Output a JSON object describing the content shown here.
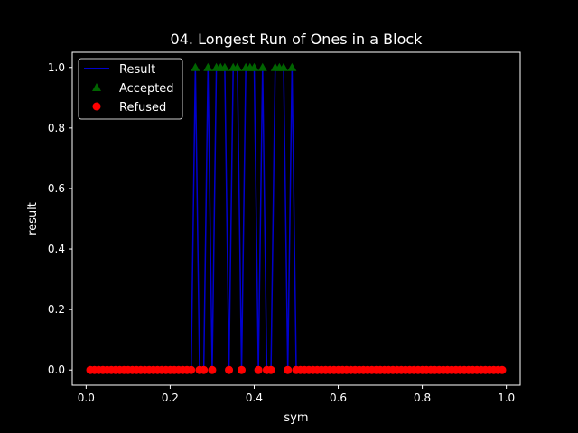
{
  "chart_data": {
    "type": "line",
    "title": "04. Longest Run of Ones in a Block",
    "xlabel": "sym",
    "ylabel": "result",
    "xlim": [
      -0.033,
      1.033
    ],
    "ylim": [
      -0.05,
      1.05
    ],
    "xticks": [
      0.0,
      0.2,
      0.4,
      0.6,
      0.8,
      1.0
    ],
    "xtick_labels": [
      "0.0",
      "0.2",
      "0.4",
      "0.6",
      "0.8",
      "1.0"
    ],
    "yticks": [
      0.0,
      0.2,
      0.4,
      0.6,
      0.8,
      1.0
    ],
    "ytick_labels": [
      "0.0",
      "0.2",
      "0.4",
      "0.6",
      "0.8",
      "1.0"
    ],
    "grid": false,
    "legend": "upper-left",
    "colors": {
      "background": "#000000",
      "line": "#0000cc",
      "accepted": "#006400",
      "refused": "#ff0000",
      "axis": "#ffffff"
    },
    "x": [
      0.01,
      0.02,
      0.03,
      0.04,
      0.05,
      0.06,
      0.07,
      0.08,
      0.09,
      0.1,
      0.11,
      0.12,
      0.13,
      0.14,
      0.15,
      0.16,
      0.17,
      0.18,
      0.19,
      0.2,
      0.21,
      0.22,
      0.23,
      0.24,
      0.25,
      0.26,
      0.27,
      0.28,
      0.29,
      0.3,
      0.31,
      0.32,
      0.33,
      0.34,
      0.35,
      0.36,
      0.37,
      0.38,
      0.39,
      0.4,
      0.41,
      0.42,
      0.43,
      0.44,
      0.45,
      0.46,
      0.47,
      0.48,
      0.49,
      0.5,
      0.51,
      0.52,
      0.53,
      0.54,
      0.55,
      0.56,
      0.57,
      0.58,
      0.59,
      0.6,
      0.61,
      0.62,
      0.63,
      0.64,
      0.65,
      0.66,
      0.67,
      0.68,
      0.69,
      0.7,
      0.71,
      0.72,
      0.73,
      0.74,
      0.75,
      0.76,
      0.77,
      0.78,
      0.79,
      0.8,
      0.81,
      0.82,
      0.83,
      0.84,
      0.85,
      0.86,
      0.87,
      0.88,
      0.89,
      0.9,
      0.91,
      0.92,
      0.93,
      0.94,
      0.95,
      0.96,
      0.97,
      0.98,
      0.99
    ],
    "series": [
      {
        "name": "Result",
        "role": "line",
        "values": [
          0,
          0,
          0,
          0,
          0,
          0,
          0,
          0,
          0,
          0,
          0,
          0,
          0,
          0,
          0,
          0,
          0,
          0,
          0,
          0,
          0,
          0,
          0,
          0,
          0,
          1,
          0,
          0,
          1,
          0,
          1,
          1,
          1,
          0,
          1,
          1,
          0,
          1,
          1,
          1,
          0,
          1,
          0,
          0,
          1,
          1,
          1,
          0,
          1,
          0,
          0,
          0,
          0,
          0,
          0,
          0,
          0,
          0,
          0,
          0,
          0,
          0,
          0,
          0,
          0,
          0,
          0,
          0,
          0,
          0,
          0,
          0,
          0,
          0,
          0,
          0,
          0,
          0,
          0,
          0,
          0,
          0,
          0,
          0,
          0,
          0,
          0,
          0,
          0,
          0,
          0,
          0,
          0,
          0,
          0,
          0,
          0,
          0,
          0
        ]
      },
      {
        "name": "Accepted",
        "role": "marker-triangle",
        "x": [
          0.26,
          0.29,
          0.31,
          0.32,
          0.33,
          0.35,
          0.36,
          0.38,
          0.39,
          0.4,
          0.42,
          0.45,
          0.46,
          0.47,
          0.49
        ],
        "values": [
          1,
          1,
          1,
          1,
          1,
          1,
          1,
          1,
          1,
          1,
          1,
          1,
          1,
          1,
          1
        ]
      },
      {
        "name": "Refused",
        "role": "marker-circle",
        "x": [
          0.01,
          0.02,
          0.03,
          0.04,
          0.05,
          0.06,
          0.07,
          0.08,
          0.09,
          0.1,
          0.11,
          0.12,
          0.13,
          0.14,
          0.15,
          0.16,
          0.17,
          0.18,
          0.19,
          0.2,
          0.21,
          0.22,
          0.23,
          0.24,
          0.25,
          0.27,
          0.28,
          0.3,
          0.34,
          0.37,
          0.41,
          0.43,
          0.44,
          0.48,
          0.5,
          0.51,
          0.52,
          0.53,
          0.54,
          0.55,
          0.56,
          0.57,
          0.58,
          0.59,
          0.6,
          0.61,
          0.62,
          0.63,
          0.64,
          0.65,
          0.66,
          0.67,
          0.68,
          0.69,
          0.7,
          0.71,
          0.72,
          0.73,
          0.74,
          0.75,
          0.76,
          0.77,
          0.78,
          0.79,
          0.8,
          0.81,
          0.82,
          0.83,
          0.84,
          0.85,
          0.86,
          0.87,
          0.88,
          0.89,
          0.9,
          0.91,
          0.92,
          0.93,
          0.94,
          0.95,
          0.96,
          0.97,
          0.98,
          0.99
        ],
        "values": [
          0,
          0,
          0,
          0,
          0,
          0,
          0,
          0,
          0,
          0,
          0,
          0,
          0,
          0,
          0,
          0,
          0,
          0,
          0,
          0,
          0,
          0,
          0,
          0,
          0,
          0,
          0,
          0,
          0,
          0,
          0,
          0,
          0,
          0,
          0,
          0,
          0,
          0,
          0,
          0,
          0,
          0,
          0,
          0,
          0,
          0,
          0,
          0,
          0,
          0,
          0,
          0,
          0,
          0,
          0,
          0,
          0,
          0,
          0,
          0,
          0,
          0,
          0,
          0,
          0,
          0,
          0,
          0,
          0,
          0,
          0,
          0,
          0,
          0,
          0,
          0,
          0,
          0,
          0,
          0,
          0,
          0,
          0,
          0
        ]
      }
    ]
  }
}
